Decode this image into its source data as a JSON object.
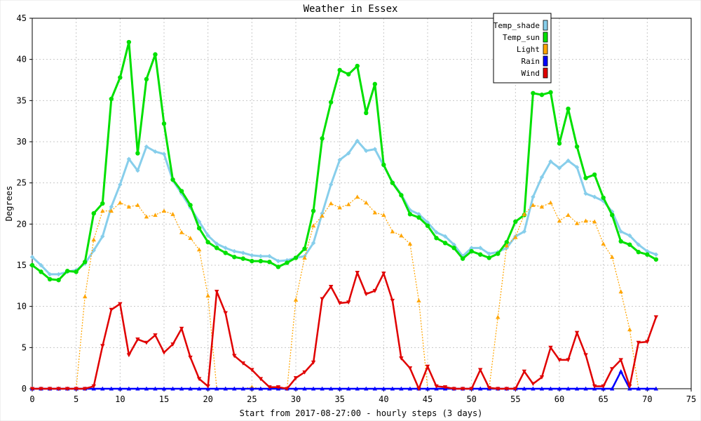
{
  "chart_data": {
    "type": "line",
    "title": "Weather in Essex",
    "xlabel": "Start from 2017-08-27:00 - hourly steps (3 days)",
    "ylabel": "Degrees",
    "xlim": [
      0,
      75
    ],
    "ylim": [
      0,
      45
    ],
    "x_ticks": [
      "0",
      "5",
      "10",
      "15",
      "20",
      "25",
      "30",
      "35",
      "40",
      "45",
      "50",
      "55",
      "60",
      "65",
      "70",
      "75"
    ],
    "y_ticks": [
      "0",
      "5",
      "10",
      "15",
      "20",
      "25",
      "30",
      "35",
      "40",
      "45"
    ],
    "grid": true,
    "legend_position": "top-right",
    "x": [
      0,
      1,
      2,
      3,
      4,
      5,
      6,
      7,
      8,
      9,
      10,
      11,
      12,
      13,
      14,
      15,
      16,
      17,
      18,
      19,
      20,
      21,
      22,
      23,
      24,
      25,
      26,
      27,
      28,
      29,
      30,
      31,
      32,
      33,
      34,
      35,
      36,
      37,
      38,
      39,
      40,
      41,
      42,
      43,
      44,
      45,
      46,
      47,
      48,
      49,
      50,
      51,
      52,
      53,
      54,
      55,
      56,
      57,
      58,
      59,
      60,
      61,
      62,
      63,
      64,
      65,
      66,
      67,
      68,
      69,
      70,
      71
    ],
    "series": [
      {
        "name": "Temp_shade",
        "color": "#87ceeb",
        "marker": "diamond",
        "values": [
          16.0,
          15.0,
          13.9,
          13.9,
          14.2,
          14.4,
          15.2,
          16.8,
          18.5,
          22.1,
          24.8,
          27.9,
          26.5,
          29.4,
          28.8,
          28.5,
          25.3,
          23.7,
          22.0,
          20.3,
          18.6,
          17.6,
          17.1,
          16.7,
          16.5,
          16.2,
          16.1,
          16.1,
          15.5,
          15.6,
          15.9,
          16.1,
          17.7,
          21.3,
          24.8,
          27.8,
          28.6,
          30.1,
          28.9,
          29.1,
          27.1,
          25.1,
          23.6,
          21.7,
          21.2,
          20.2,
          19.0,
          18.5,
          17.5,
          16.1,
          17.1,
          17.1,
          16.4,
          16.6,
          17.1,
          18.5,
          19.1,
          23.3,
          25.7,
          27.6,
          26.8,
          27.7,
          26.9,
          23.7,
          23.3,
          22.8,
          21.5,
          19.1,
          18.6,
          17.5,
          16.7,
          16.3
        ]
      },
      {
        "name": "Temp_sun",
        "color": "#00e000",
        "marker": "circle",
        "values": [
          15.0,
          14.2,
          13.3,
          13.2,
          14.3,
          14.2,
          15.4,
          21.3,
          22.5,
          35.2,
          37.8,
          42.1,
          28.6,
          37.6,
          40.6,
          32.2,
          25.4,
          24.0,
          22.3,
          19.5,
          17.8,
          17.1,
          16.5,
          16.0,
          15.8,
          15.5,
          15.5,
          15.4,
          14.8,
          15.3,
          15.9,
          17.0,
          21.6,
          30.4,
          34.8,
          38.7,
          38.2,
          39.2,
          33.5,
          37.0,
          27.2,
          25.0,
          23.5,
          21.2,
          20.8,
          19.8,
          18.3,
          17.7,
          17.1,
          15.8,
          16.7,
          16.3,
          15.9,
          16.4,
          17.8,
          20.3,
          21.1,
          35.9,
          35.7,
          36.0,
          29.8,
          34.0,
          29.4,
          25.6,
          26.0,
          23.2,
          21.1,
          17.9,
          17.5,
          16.6,
          16.3,
          15.7
        ]
      },
      {
        "name": "Light",
        "color": "#ffa500",
        "marker": "triangle",
        "values": [
          0,
          0,
          0,
          0,
          0,
          0,
          11.2,
          18.1,
          21.6,
          21.6,
          22.6,
          22.1,
          22.3,
          20.9,
          21.1,
          21.6,
          21.2,
          19.0,
          18.3,
          16.9,
          11.3,
          0,
          0,
          0,
          0,
          0.2,
          0,
          0,
          0,
          0,
          10.8,
          15.9,
          19.8,
          21.0,
          22.5,
          22.0,
          22.4,
          23.3,
          22.6,
          21.4,
          21.1,
          19.1,
          18.6,
          17.6,
          10.7,
          0,
          0,
          0,
          0,
          0,
          0,
          0,
          0,
          8.7,
          17.4,
          18.4,
          21.2,
          22.3,
          22.1,
          22.6,
          20.4,
          21.1,
          20.1,
          20.4,
          20.3,
          17.6,
          16.0,
          11.8,
          7.2,
          0,
          0,
          0
        ]
      },
      {
        "name": "Rain",
        "color": "#0000ff",
        "marker": "triangle",
        "values": [
          0,
          0,
          0,
          0,
          0,
          0,
          0,
          0,
          0,
          0,
          0,
          0,
          0,
          0,
          0,
          0,
          0,
          0,
          0,
          0,
          0,
          0,
          0,
          0,
          0,
          0,
          0,
          0,
          0,
          0,
          0,
          0,
          0,
          0,
          0,
          0,
          0,
          0,
          0,
          0,
          0,
          0,
          0,
          0,
          0,
          0,
          0,
          0,
          0,
          0,
          0,
          0,
          0,
          0,
          0,
          0,
          0,
          0,
          0,
          0,
          0,
          0,
          0,
          0,
          0,
          0,
          0,
          2.1,
          0,
          0,
          0,
          0
        ]
      },
      {
        "name": "Wind",
        "color": "#e00000",
        "marker": "triangle-down",
        "values": [
          0,
          0,
          0,
          0,
          0,
          0,
          0,
          0.3,
          5.2,
          9.6,
          10.3,
          4.1,
          6.0,
          5.6,
          6.5,
          4.4,
          5.4,
          7.3,
          3.8,
          1.2,
          0.3,
          11.8,
          9.2,
          4.0,
          3.1,
          2.3,
          1.2,
          0.2,
          0.2,
          0,
          1.3,
          2.0,
          3.2,
          10.9,
          12.4,
          10.4,
          10.5,
          14.1,
          11.5,
          11.9,
          14.0,
          10.7,
          3.7,
          2.5,
          0,
          2.7,
          0.3,
          0.2,
          0,
          0,
          0,
          2.3,
          0.1,
          0,
          0,
          0,
          2.1,
          0.6,
          1.4,
          5.0,
          3.5,
          3.5,
          6.8,
          4.1,
          0.3,
          0.3,
          2.4,
          3.5,
          0.3,
          5.6,
          5.7,
          8.7
        ]
      }
    ]
  }
}
